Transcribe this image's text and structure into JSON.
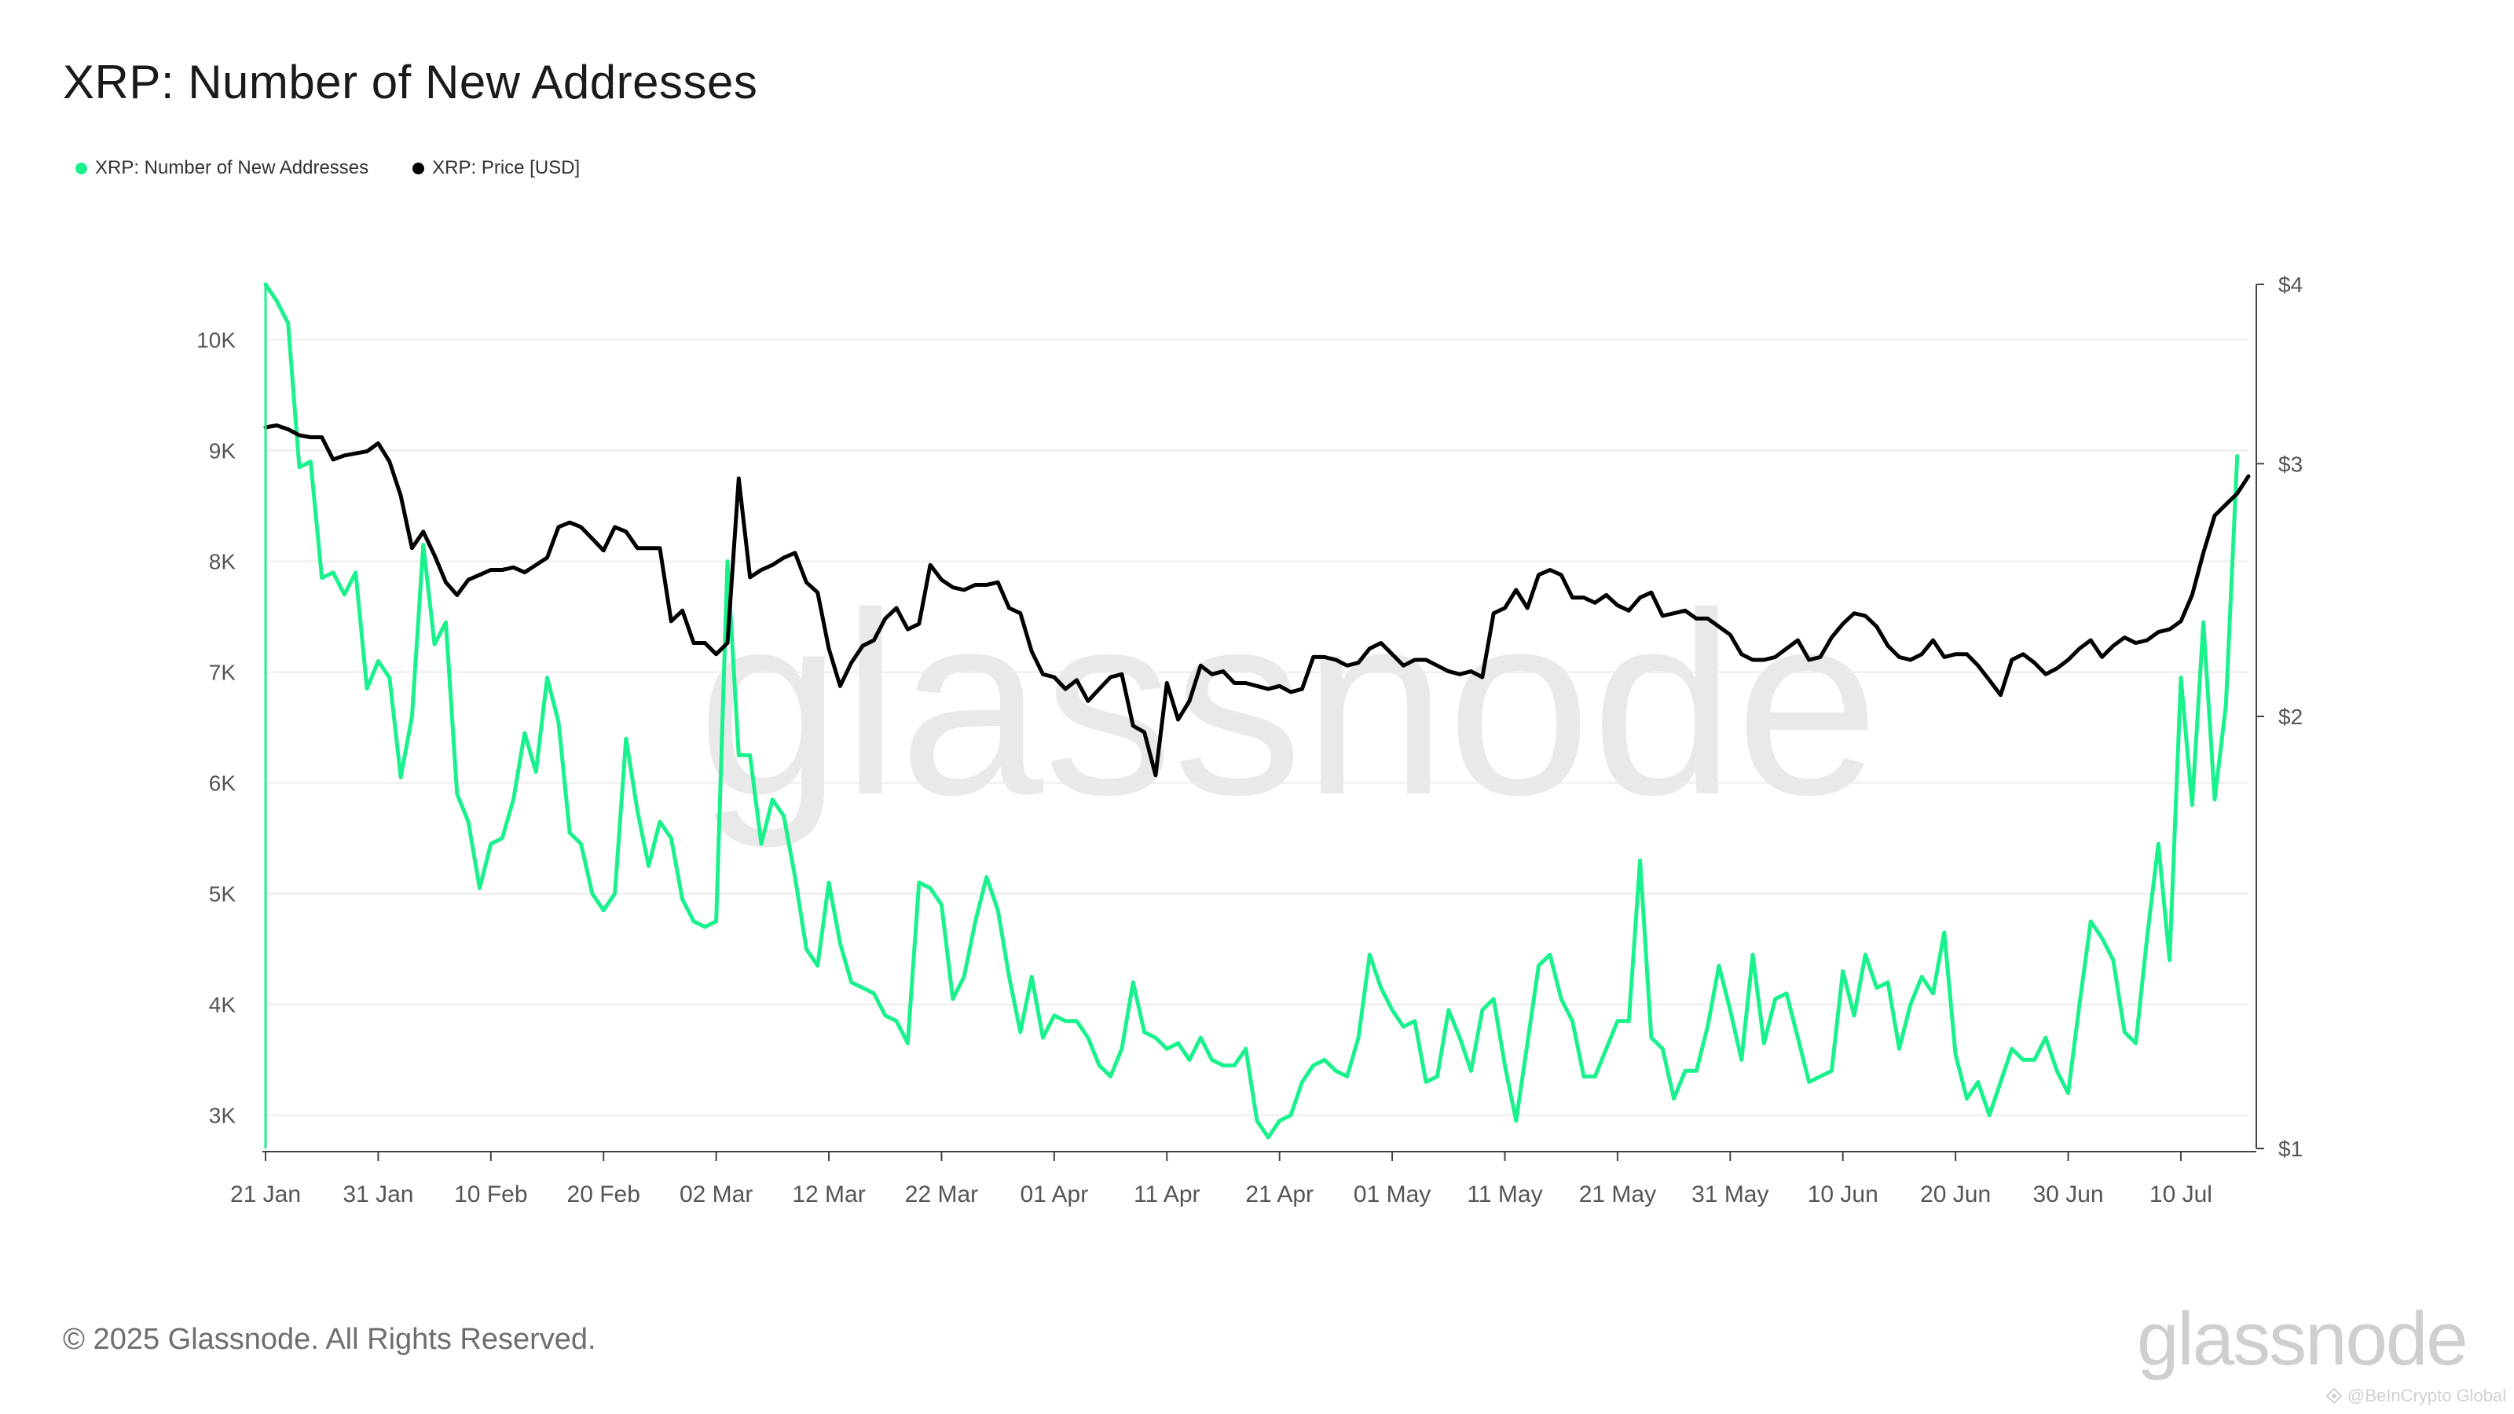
{
  "header": {
    "title": "XRP: Number of New Addresses"
  },
  "legend": [
    {
      "label": "XRP: Number of New Addresses",
      "color": "#19f28c"
    },
    {
      "label": "XRP: Price [USD]",
      "color": "#000000"
    }
  ],
  "watermark": "glassnode",
  "footer": {
    "copyright": "© 2025 Glassnode. All Rights Reserved.",
    "logo": "glassnode",
    "source": "@BeInCrypto Global",
    "source_icon": "beincrypto-icon"
  },
  "colors": {
    "addresses": "#19f28c",
    "price": "#000000",
    "grid": "#ececec",
    "axis": "#555555"
  },
  "chart_data": {
    "type": "line",
    "x_ticks": [
      "21 Jan",
      "31 Jan",
      "10 Feb",
      "20 Feb",
      "02 Mar",
      "12 Mar",
      "22 Mar",
      "01 Apr",
      "11 Apr",
      "21 Apr",
      "01 May",
      "11 May",
      "21 May",
      "31 May",
      "10 Jun",
      "20 Jun",
      "30 Jun",
      "10 Jul"
    ],
    "x_start": "2025-01-21",
    "x_end": "2025-07-16",
    "left_axis": {
      "ticks": [
        3000,
        4000,
        5000,
        6000,
        7000,
        8000,
        9000,
        10000
      ],
      "tick_labels": [
        "3K",
        "4K",
        "5K",
        "6K",
        "7K",
        "8K",
        "9K",
        "10K"
      ],
      "range": [
        2700,
        10500
      ]
    },
    "right_axis": {
      "scale": "log",
      "ticks": [
        1,
        2,
        3,
        4
      ],
      "tick_labels": [
        "$1",
        "$2",
        "$3",
        "$4"
      ],
      "range": [
        1,
        4
      ]
    },
    "grid": true,
    "legend_position": "top-left",
    "series": [
      {
        "name": "XRP: Number of New Addresses",
        "axis": "left",
        "start": "2025-01-21",
        "step_days": 1,
        "values": [
          10500,
          10350,
          10150,
          8850,
          8900,
          7850,
          7900,
          7700,
          7900,
          6850,
          7100,
          6950,
          6050,
          6600,
          8150,
          7250,
          7450,
          5900,
          5650,
          5050,
          5450,
          5500,
          5850,
          6450,
          6100,
          6950,
          6550,
          5550,
          5450,
          5000,
          4850,
          5000,
          6400,
          5750,
          5250,
          5650,
          5500,
          4950,
          4750,
          4700,
          4750,
          8000,
          6250,
          6250,
          5450,
          5850,
          5700,
          5150,
          4500,
          4350,
          5100,
          4550,
          4200,
          4150,
          4100,
          3900,
          3850,
          3650,
          5100,
          5050,
          4900,
          4050,
          4250,
          4750,
          5150,
          4850,
          4250,
          3750,
          4250,
          3700,
          3900,
          3850,
          3850,
          3700,
          3450,
          3350,
          3600,
          4200,
          3750,
          3700,
          3600,
          3650,
          3500,
          3700,
          3500,
          3450,
          3450,
          3600,
          2950,
          2800,
          2950,
          3000,
          3300,
          3450,
          3500,
          3400,
          3350,
          3700,
          4450,
          4150,
          3950,
          3800,
          3850,
          3300,
          3350,
          3950,
          3700,
          3400,
          3950,
          4050,
          3450,
          2950,
          3650,
          4350,
          4450,
          4050,
          3850,
          3350,
          3350,
          3600,
          3850,
          3850,
          5300,
          3700,
          3600,
          3150,
          3400,
          3400,
          3800,
          4350,
          3950,
          3500,
          4450,
          3650,
          4050,
          4100,
          3700,
          3300,
          3350,
          3400,
          4300,
          3900,
          4450,
          4150,
          4200,
          3600,
          4000,
          4250,
          4100,
          4650,
          3550,
          3150,
          3300,
          3000,
          3300,
          3600,
          3500,
          3500,
          3700,
          3400,
          3200,
          4000,
          4750,
          4600,
          4400,
          3750,
          3650,
          4600,
          5450,
          4400,
          6950,
          5800,
          7450,
          5850,
          6700,
          8950
        ]
      },
      {
        "name": "XRP: Price [USD]",
        "axis": "right",
        "start": "2025-01-21",
        "step_days": 1,
        "values": [
          3.18,
          3.19,
          3.17,
          3.14,
          3.13,
          3.13,
          3.02,
          3.04,
          3.05,
          3.06,
          3.1,
          3.01,
          2.85,
          2.62,
          2.69,
          2.59,
          2.48,
          2.43,
          2.49,
          2.51,
          2.53,
          2.53,
          2.54,
          2.52,
          2.55,
          2.58,
          2.71,
          2.73,
          2.71,
          2.66,
          2.61,
          2.71,
          2.69,
          2.62,
          2.62,
          2.62,
          2.33,
          2.37,
          2.25,
          2.25,
          2.21,
          2.25,
          2.93,
          2.5,
          2.53,
          2.55,
          2.58,
          2.6,
          2.48,
          2.44,
          2.23,
          2.1,
          2.18,
          2.24,
          2.26,
          2.34,
          2.38,
          2.3,
          2.32,
          2.55,
          2.49,
          2.46,
          2.45,
          2.47,
          2.47,
          2.48,
          2.38,
          2.36,
          2.22,
          2.14,
          2.13,
          2.09,
          2.12,
          2.05,
          2.09,
          2.13,
          2.14,
          1.97,
          1.95,
          1.82,
          2.11,
          1.99,
          2.05,
          2.17,
          2.14,
          2.15,
          2.11,
          2.11,
          2.1,
          2.09,
          2.1,
          2.08,
          2.09,
          2.2,
          2.2,
          2.19,
          2.17,
          2.18,
          2.23,
          2.25,
          2.21,
          2.17,
          2.19,
          2.19,
          2.17,
          2.15,
          2.14,
          2.15,
          2.13,
          2.36,
          2.38,
          2.45,
          2.38,
          2.51,
          2.53,
          2.51,
          2.42,
          2.42,
          2.4,
          2.43,
          2.39,
          2.37,
          2.42,
          2.44,
          2.35,
          2.36,
          2.37,
          2.34,
          2.34,
          2.31,
          2.28,
          2.21,
          2.19,
          2.19,
          2.2,
          2.23,
          2.26,
          2.19,
          2.2,
          2.27,
          2.32,
          2.36,
          2.35,
          2.31,
          2.24,
          2.2,
          2.19,
          2.21,
          2.26,
          2.2,
          2.21,
          2.21,
          2.17,
          2.12,
          2.07,
          2.19,
          2.21,
          2.18,
          2.14,
          2.16,
          2.19,
          2.23,
          2.26,
          2.2,
          2.24,
          2.27,
          2.25,
          2.26,
          2.29,
          2.3,
          2.33,
          2.43,
          2.6,
          2.76,
          2.81,
          2.86,
          2.94
        ]
      }
    ]
  }
}
